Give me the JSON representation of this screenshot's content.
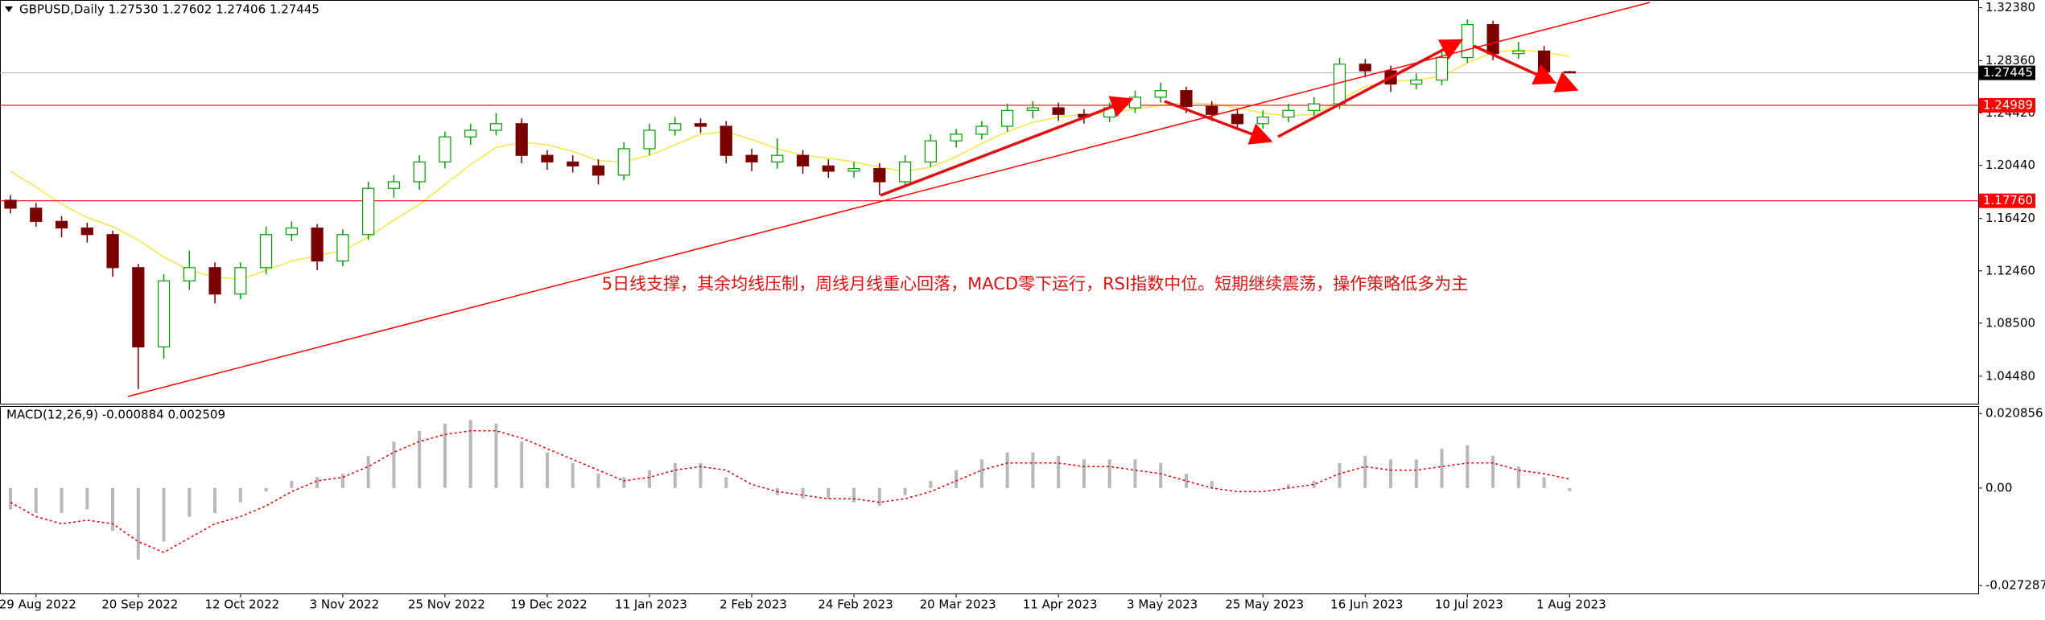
{
  "chart_data": [
    {
      "type": "candlestick",
      "title": "GBPUSD,Daily  1.27530 1.27602 1.27406 1.27445",
      "annotation": "5日线支撑，其余均线压制，周线月线重心回落，MACD零下运行，RSI指数中位。短期继续震荡，操作策略低多为主",
      "up_color": "#00a000",
      "down_color": "#7a0000",
      "categories": [
        null,
        "29 Aug 2022",
        null,
        null,
        null,
        "20 Sep 2022",
        null,
        null,
        null,
        "12 Oct 2022",
        null,
        null,
        null,
        "3 Nov 2022",
        null,
        null,
        null,
        "25 Nov 2022",
        null,
        null,
        null,
        "19 Dec 2022",
        null,
        null,
        null,
        "11 Jan 2023",
        null,
        null,
        null,
        "2 Feb 2023",
        null,
        null,
        null,
        "24 Feb 2023",
        null,
        null,
        null,
        "20 Mar 2023",
        null,
        null,
        null,
        "11 Apr 2023",
        null,
        null,
        null,
        "3 May 2023",
        null,
        null,
        null,
        "25 May 2023",
        null,
        null,
        null,
        "16 Jun 2023",
        null,
        null,
        null,
        "10 Jul 2023",
        null,
        null,
        null,
        "1 Aug 2023"
      ],
      "ohlc": [
        [
          1.178,
          1.182,
          1.168,
          1.172
        ],
        [
          1.172,
          1.176,
          1.158,
          1.162
        ],
        [
          1.162,
          1.166,
          1.15,
          1.157
        ],
        [
          1.157,
          1.161,
          1.146,
          1.152
        ],
        [
          1.152,
          1.155,
          1.12,
          1.127
        ],
        [
          1.127,
          1.13,
          1.035,
          1.067
        ],
        [
          1.067,
          1.122,
          1.058,
          1.117
        ],
        [
          1.117,
          1.14,
          1.11,
          1.127
        ],
        [
          1.127,
          1.131,
          1.1,
          1.107
        ],
        [
          1.107,
          1.131,
          1.103,
          1.127
        ],
        [
          1.127,
          1.158,
          1.122,
          1.152
        ],
        [
          1.152,
          1.162,
          1.147,
          1.157
        ],
        [
          1.157,
          1.16,
          1.125,
          1.132
        ],
        [
          1.132,
          1.156,
          1.128,
          1.152
        ],
        [
          1.152,
          1.192,
          1.148,
          1.187
        ],
        [
          1.187,
          1.197,
          1.18,
          1.192
        ],
        [
          1.192,
          1.212,
          1.186,
          1.207
        ],
        [
          1.207,
          1.23,
          1.202,
          1.226
        ],
        [
          1.226,
          1.236,
          1.22,
          1.231
        ],
        [
          1.231,
          1.244,
          1.227,
          1.236
        ],
        [
          1.236,
          1.24,
          1.206,
          1.212
        ],
        [
          1.212,
          1.216,
          1.201,
          1.207
        ],
        [
          1.207,
          1.212,
          1.199,
          1.204
        ],
        [
          1.204,
          1.209,
          1.19,
          1.197
        ],
        [
          1.197,
          1.222,
          1.193,
          1.217
        ],
        [
          1.217,
          1.236,
          1.212,
          1.231
        ],
        [
          1.231,
          1.241,
          1.227,
          1.236
        ],
        [
          1.236,
          1.24,
          1.229,
          1.234
        ],
        [
          1.234,
          1.238,
          1.206,
          1.212
        ],
        [
          1.212,
          1.217,
          1.2,
          1.207
        ],
        [
          1.207,
          1.225,
          1.202,
          1.212
        ],
        [
          1.212,
          1.216,
          1.198,
          1.204
        ],
        [
          1.204,
          1.209,
          1.195,
          1.2
        ],
        [
          1.2,
          1.207,
          1.195,
          1.202
        ],
        [
          1.202,
          1.206,
          1.182,
          1.192
        ],
        [
          1.192,
          1.212,
          1.188,
          1.207
        ],
        [
          1.207,
          1.228,
          1.203,
          1.223
        ],
        [
          1.223,
          1.232,
          1.218,
          1.228
        ],
        [
          1.228,
          1.238,
          1.224,
          1.234
        ],
        [
          1.234,
          1.251,
          1.23,
          1.246
        ],
        [
          1.246,
          1.253,
          1.24,
          1.248
        ],
        [
          1.248,
          1.252,
          1.238,
          1.243
        ],
        [
          1.243,
          1.247,
          1.236,
          1.241
        ],
        [
          1.241,
          1.252,
          1.237,
          1.248
        ],
        [
          1.248,
          1.261,
          1.244,
          1.256
        ],
        [
          1.256,
          1.267,
          1.252,
          1.261
        ],
        [
          1.261,
          1.264,
          1.244,
          1.249
        ],
        [
          1.249,
          1.253,
          1.238,
          1.243
        ],
        [
          1.243,
          1.247,
          1.231,
          1.236
        ],
        [
          1.236,
          1.246,
          1.232,
          1.241
        ],
        [
          1.241,
          1.251,
          1.237,
          1.246
        ],
        [
          1.246,
          1.256,
          1.242,
          1.251
        ],
        [
          1.251,
          1.286,
          1.247,
          1.281
        ],
        [
          1.281,
          1.285,
          1.271,
          1.276
        ],
        [
          1.276,
          1.28,
          1.26,
          1.266
        ],
        [
          1.266,
          1.274,
          1.262,
          1.269
        ],
        [
          1.269,
          1.291,
          1.265,
          1.286
        ],
        [
          1.286,
          1.315,
          1.282,
          1.311
        ],
        [
          1.311,
          1.314,
          1.284,
          1.289
        ],
        [
          1.289,
          1.298,
          1.285,
          1.291
        ],
        [
          1.291,
          1.295,
          1.27,
          1.2753
        ],
        [
          1.2753,
          1.27602,
          1.27406,
          1.27445
        ]
      ],
      "ma": {
        "color": "#f5e642",
        "values": [
          1.2,
          1.188,
          1.175,
          1.165,
          1.158,
          1.148,
          1.135,
          1.125,
          1.12,
          1.118,
          1.125,
          1.132,
          1.136,
          1.14,
          1.15,
          1.163,
          1.175,
          1.19,
          1.205,
          1.218,
          1.222,
          1.22,
          1.215,
          1.208,
          1.207,
          1.212,
          1.22,
          1.228,
          1.23,
          1.224,
          1.217,
          1.212,
          1.21,
          1.207,
          1.203,
          1.2,
          1.203,
          1.211,
          1.221,
          1.23,
          1.237,
          1.241,
          1.243,
          1.244,
          1.247,
          1.25,
          1.252,
          1.251,
          1.248,
          1.244,
          1.242,
          1.243,
          1.254,
          1.264,
          1.268,
          1.269,
          1.272,
          1.282,
          1.29,
          1.292,
          1.29,
          1.287
        ]
      },
      "hlines": [
        {
          "value": 1.24989,
          "label": "1.24989",
          "color": "#ff0000"
        },
        {
          "value": 1.1776,
          "label": "1.17760",
          "color": "#ff0000"
        }
      ],
      "current_price": {
        "value": 1.27445,
        "label": "1.27445",
        "color": "#000000"
      },
      "ylim": [
        1.024,
        1.329
      ],
      "yticks": [
        {
          "value": 1.3238,
          "label": "1.32380"
        },
        {
          "value": 1.2836,
          "label": "1.28360"
        },
        {
          "value": 1.2442,
          "label": "1.24420"
        },
        {
          "value": 1.2044,
          "label": "1.20440"
        },
        {
          "value": 1.1642,
          "label": "1.16420"
        },
        {
          "value": 1.1246,
          "label": "1.12460"
        },
        {
          "value": 1.085,
          "label": "1.08500"
        },
        {
          "value": 1.0448,
          "label": "1.04480"
        }
      ]
    },
    {
      "type": "macd",
      "title": "MACD(12,26,9) -0.000884 0.002509",
      "hist_color": "#b8b8b8",
      "signal_color": "#e00000",
      "hist": [
        -0.006,
        -0.007,
        -0.007,
        -0.006,
        -0.012,
        -0.02,
        -0.015,
        -0.008,
        -0.007,
        -0.004,
        -0.001,
        0.002,
        0.003,
        0.004,
        0.009,
        0.013,
        0.016,
        0.018,
        0.019,
        0.018,
        0.013,
        0.01,
        0.007,
        0.004,
        0.003,
        0.005,
        0.007,
        0.007,
        0.003,
        0.0,
        -0.002,
        -0.003,
        -0.003,
        -0.004,
        -0.005,
        -0.002,
        0.002,
        0.005,
        0.008,
        0.01,
        0.01,
        0.009,
        0.008,
        0.008,
        0.008,
        0.007,
        0.004,
        0.002,
        0.0,
        0.0,
        0.001,
        0.002,
        0.007,
        0.009,
        0.008,
        0.008,
        0.011,
        0.012,
        0.009,
        0.006,
        0.003,
        -0.000884
      ],
      "signal": [
        -0.004,
        -0.008,
        -0.01,
        -0.009,
        -0.01,
        -0.015,
        -0.018,
        -0.014,
        -0.01,
        -0.008,
        -0.005,
        -0.001,
        0.002,
        0.003,
        0.006,
        0.01,
        0.013,
        0.015,
        0.016,
        0.016,
        0.014,
        0.011,
        0.008,
        0.005,
        0.002,
        0.003,
        0.005,
        0.006,
        0.005,
        0.001,
        -0.001,
        -0.002,
        -0.003,
        -0.003,
        -0.004,
        -0.003,
        -0.001,
        0.002,
        0.005,
        0.007,
        0.007,
        0.007,
        0.006,
        0.006,
        0.005,
        0.004,
        0.002,
        0.0,
        -0.001,
        -0.001,
        0.0,
        0.001,
        0.004,
        0.006,
        0.005,
        0.005,
        0.006,
        0.007,
        0.007,
        0.005,
        0.004,
        0.002509
      ],
      "ylim": [
        -0.0295,
        0.0227
      ],
      "yticks": [
        0.020856,
        {
          "value": 0,
          "label": "0.00"
        },
        -0.027287
      ]
    }
  ]
}
